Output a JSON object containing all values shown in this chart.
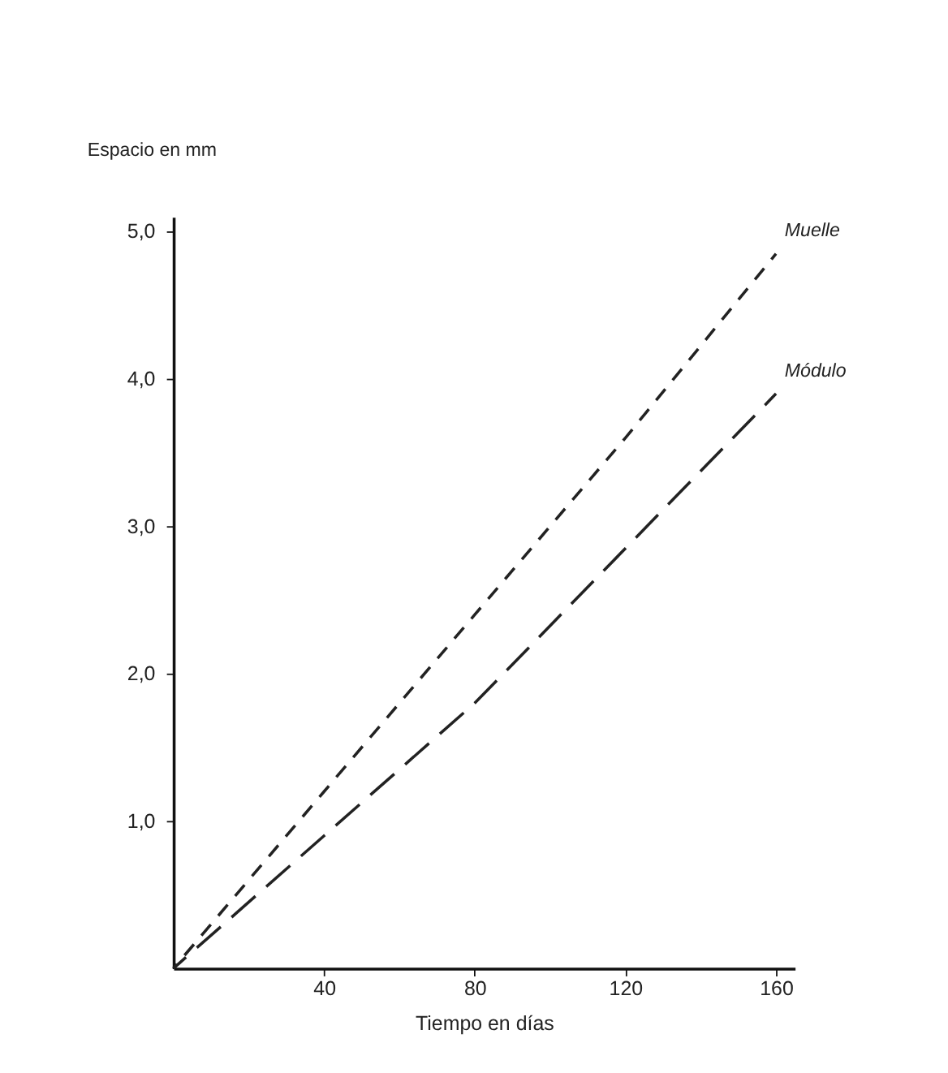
{
  "chart_data": {
    "type": "line",
    "xlabel": "Tiempo en días",
    "ylabel": "Espacio en mm",
    "series": [
      {
        "name": "Muelle",
        "color": "#222222",
        "line_style": "dashed",
        "x": [
          0,
          40,
          80,
          120,
          160
        ],
        "values": [
          0,
          1.2,
          2.4,
          3.6,
          4.85
        ]
      },
      {
        "name": "Módulo",
        "color": "#222222",
        "line_style": "dashed",
        "x": [
          0,
          40,
          80,
          120,
          160
        ],
        "values": [
          0,
          0.9,
          1.8,
          2.85,
          3.9
        ]
      }
    ],
    "xlim": [
      0,
      165
    ],
    "ylim": [
      0,
      5.1
    ],
    "xticks": [
      40,
      80,
      120,
      160
    ],
    "yticks": [
      {
        "value": 1,
        "label": "1,0"
      },
      {
        "value": 2,
        "label": "2,0"
      },
      {
        "value": 3,
        "label": "3,0"
      },
      {
        "value": 4,
        "label": "4,0"
      },
      {
        "value": 5,
        "label": "5,0"
      }
    ],
    "grid": false,
    "marker": "none"
  }
}
